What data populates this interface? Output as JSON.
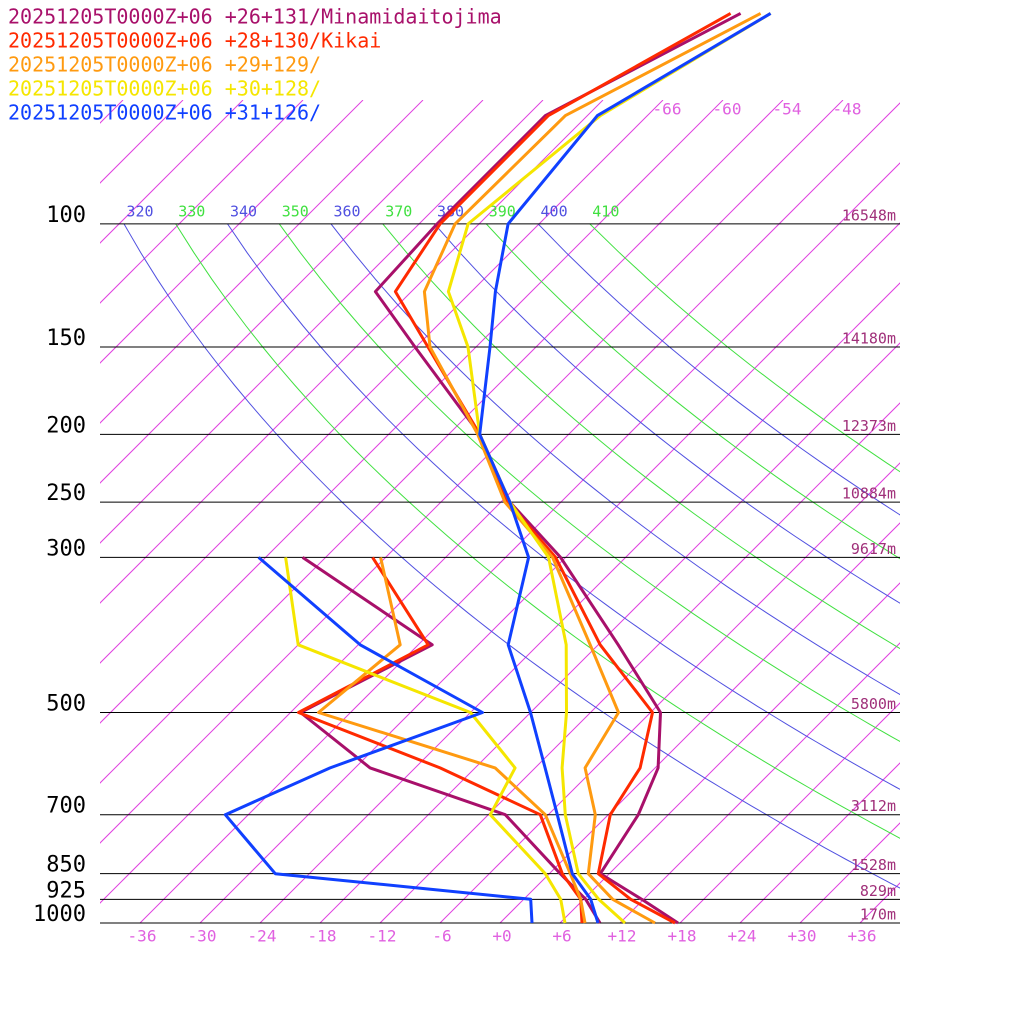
{
  "chart_data": {
    "type": "skew-t",
    "pressure": [
      1000,
      925,
      850,
      700,
      600,
      500,
      400,
      300,
      250,
      200,
      150,
      125,
      100,
      70,
      50
    ],
    "series": [
      {
        "name": "20251205T0000Z+06 +26+131/Minamidaitojima",
        "color": "#a8106a",
        "temperature": [
          17.8,
          11.8,
          5.1,
          3.0,
          0.3,
          -5.0,
          -16.0,
          -30.5,
          -41.1,
          -50.9,
          -66.1,
          -75.6,
          -76.2,
          -76.2,
          -66.9
        ],
        "dewpoint": [
          10.0,
          6.2,
          1.1,
          -10.3,
          -28.5,
          -41.0,
          -34.6,
          -56.3,
          null,
          null,
          null,
          null,
          null,
          null,
          null
        ]
      },
      {
        "name": "20251205T0000Z+06 +28+130/Kikai",
        "color": "#ff2a00",
        "temperature": [
          17.5,
          10.7,
          4.9,
          0.2,
          -1.5,
          -5.8,
          -17.8,
          -31.0,
          -41.3,
          -50.9,
          -64.8,
          -73.6,
          -75.9,
          -75.9,
          -67.9
        ],
        "dewpoint": [
          8.2,
          5.7,
          1.3,
          -6.8,
          -21.5,
          -41.2,
          -35.0,
          -49.3,
          null,
          null,
          null,
          null,
          null,
          null,
          null
        ]
      },
      {
        "name": "20251205T0000Z+06 +29+129/",
        "color": "#ff9a10",
        "temperature": [
          15.5,
          8.9,
          3.9,
          -1.3,
          -7.0,
          -9.2,
          -18.8,
          -31.3,
          -41.6,
          -51.1,
          -64.6,
          -70.7,
          -74.4,
          -74.2,
          -64.9
        ],
        "dewpoint": [
          8.5,
          5.7,
          2.1,
          -6.3,
          -16.0,
          -39.2,
          -37.8,
          -48.5,
          null,
          null,
          null,
          null,
          null,
          null,
          null
        ]
      },
      {
        "name": "20251205T0000Z+06 +30+128/",
        "color": "#f5e600",
        "temperature": [
          12.5,
          7.5,
          2.9,
          -4.3,
          -9.3,
          -14.4,
          -21.2,
          -31.7,
          -41.1,
          -50.9,
          -60.8,
          -68.3,
          -73.1,
          -70.7,
          -63.9
        ],
        "dewpoint": [
          6.5,
          3.7,
          -0.4,
          -11.8,
          -14.0,
          -24.0,
          -48.0,
          -58.0,
          null,
          null,
          null,
          null,
          null,
          null,
          null
        ]
      },
      {
        "name": "20251205T0000Z+06 +31+126/",
        "color": "#1040ff",
        "temperature": [
          9.8,
          6.7,
          2.3,
          -5.1,
          -11.0,
          -18.0,
          -27.0,
          -33.7,
          -41.1,
          -50.9,
          -58.6,
          -63.6,
          -69.1,
          -71.0,
          -63.9
        ],
        "dewpoint": [
          3.2,
          0.7,
          -27.4,
          -38.3,
          -32.5,
          -22.8,
          -41.8,
          -60.7,
          null,
          null,
          null,
          null,
          null,
          null,
          null
        ]
      }
    ],
    "xlim": [
      -40,
      40
    ],
    "ylim": [
      1000,
      48
    ],
    "xticks": [
      -36,
      -30,
      -24,
      -18,
      -12,
      -6,
      {
        "value": 0,
        "label": "+0"
      },
      {
        "value": 6,
        "label": "+6"
      },
      {
        "value": 12,
        "label": "+12"
      },
      {
        "value": 18,
        "label": "+18"
      },
      {
        "value": 24,
        "label": "+24"
      },
      {
        "value": 30,
        "label": "+30"
      },
      {
        "value": 36,
        "label": "+36"
      }
    ],
    "yticks": [
      100,
      150,
      200,
      250,
      300,
      500,
      700,
      850,
      925,
      1000
    ],
    "heights": [
      "16548m",
      "14180m",
      "12373m",
      "10884m",
      "9617m",
      "5800m",
      "3112m",
      "1528m",
      "829m",
      "170m"
    ],
    "isotherm_labels": [
      -66,
      -60,
      -54,
      -48
    ],
    "theta_labels": [
      320,
      330,
      340,
      350,
      360,
      370,
      380,
      390,
      400,
      410
    ]
  }
}
